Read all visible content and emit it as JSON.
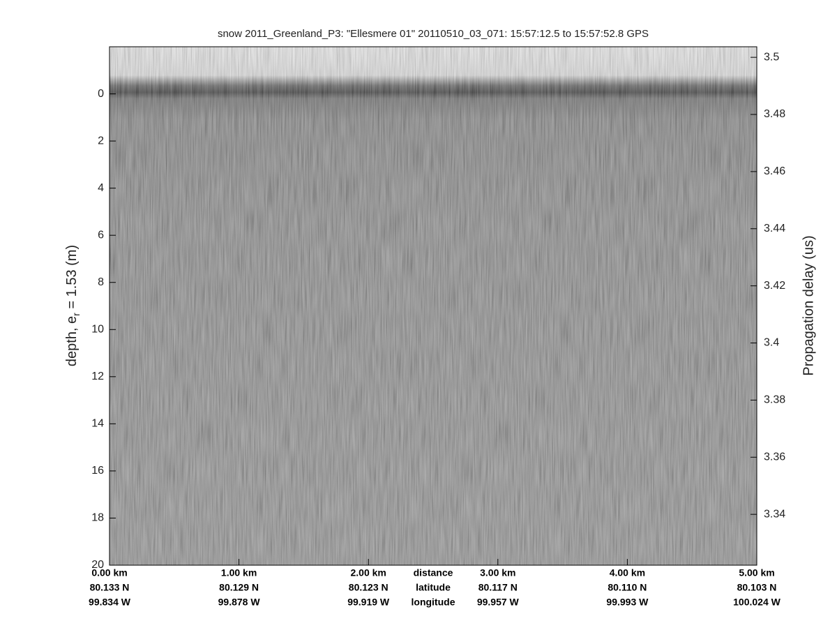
{
  "chart_data": {
    "type": "radargram",
    "title": "snow 2011_Greenland_P3: \"Ellesmere 01\"  20110510_03_071: 15:57:12.5 to 15:57:52.8 GPS",
    "ylabel": [
      "depth, e",
      "r",
      " = 1.53 (m)"
    ],
    "y2label": "Propagation delay (us)",
    "xlim": [
      0,
      5
    ],
    "xticks": [
      {
        "value": 0,
        "label": "0.00 km"
      },
      {
        "value": 1,
        "label": "1.00 km"
      },
      {
        "value": 2,
        "label": "2.00 km"
      },
      {
        "value": 3,
        "label": "3.00 km"
      },
      {
        "value": 4,
        "label": "4.00 km"
      },
      {
        "value": 5,
        "label": "5.00 km"
      }
    ],
    "latitudes": [
      "80.133 N",
      "80.129 N",
      "80.123 N",
      "80.117 N",
      "80.110 N",
      "80.103 N"
    ],
    "longitudes": [
      "99.834 W",
      "99.878 W",
      "99.919 W",
      "99.957 W",
      "99.993 W",
      "100.024 W"
    ],
    "row_names": [
      "distance",
      "latitude",
      "longitude"
    ],
    "ylim": [
      20,
      -2
    ],
    "yticks": [
      0,
      2,
      4,
      6,
      8,
      10,
      12,
      14,
      16,
      18,
      20
    ],
    "y2lim": [
      3.3222,
      3.5037
    ],
    "y2ticks": [
      3.34,
      3.36,
      3.38,
      3.4,
      3.42,
      3.44,
      3.46,
      3.48,
      3.5
    ]
  }
}
